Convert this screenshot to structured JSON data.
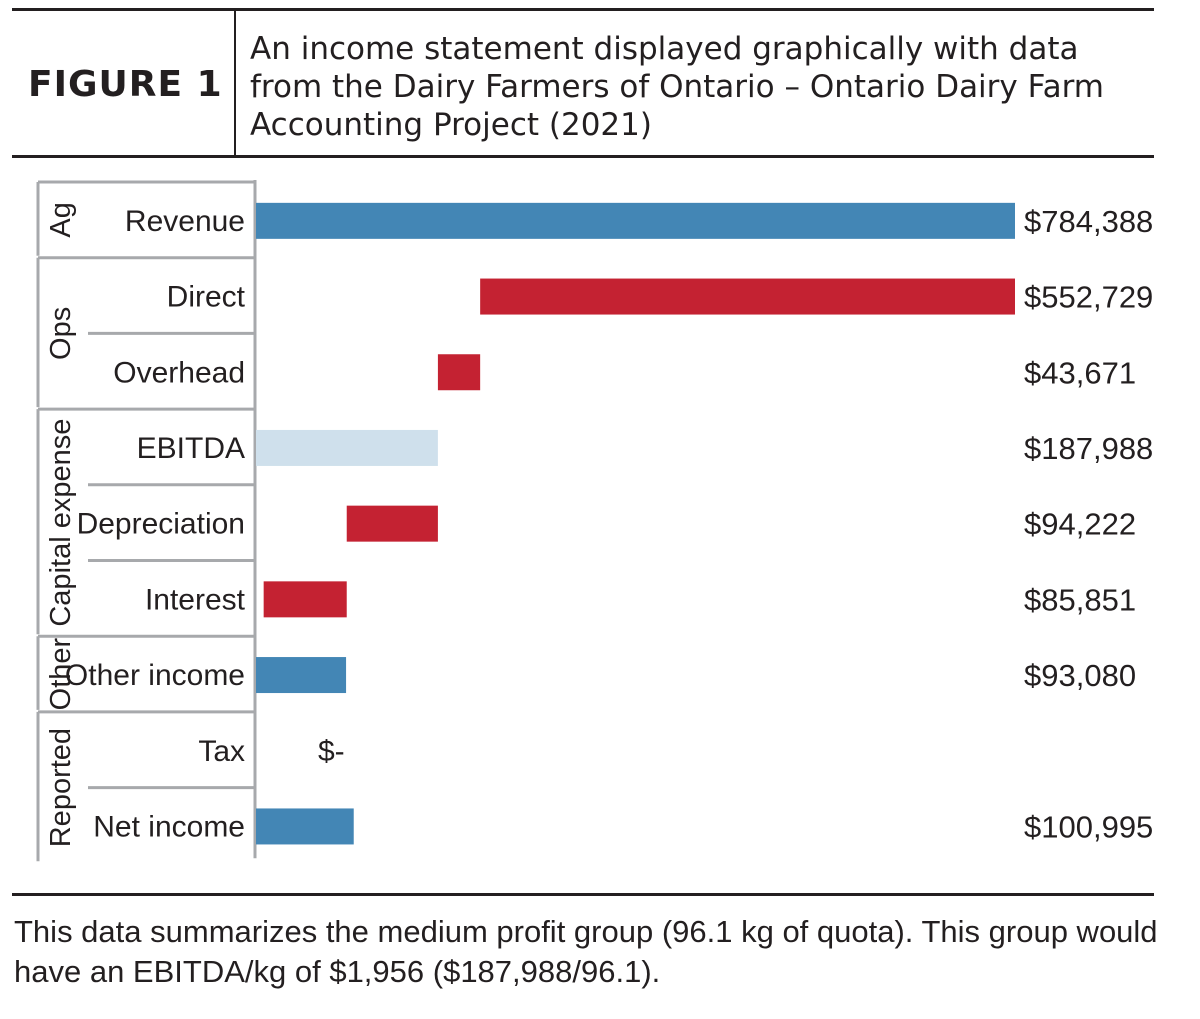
{
  "figure": {
    "label": "FIGURE 1",
    "title": "An income statement displayed graphically with data from the Dairy Farmers of Ontario – Ontario Dairy Farm Accounting Project (2021)",
    "footnote": "This data summarizes the medium profit group (96.1 kg of quota). This group would have an EBITDA/kg of $1,956 ($187,988/96.1)."
  },
  "colors": {
    "income": "#4386b5",
    "expense": "#c42232",
    "subtotal": "#cfe0ec",
    "axis": "#a7a9ac"
  },
  "chart_data": {
    "type": "bar",
    "subtype": "waterfall-horizontal",
    "categories": [
      "Revenue",
      "Direct",
      "Overhead",
      "EBITDA",
      "Depreciation",
      "Interest",
      "Other income",
      "Tax",
      "Net income"
    ],
    "groups": [
      {
        "name": "Ag",
        "categories": [
          "Revenue"
        ]
      },
      {
        "name": "Ops",
        "categories": [
          "Direct",
          "Overhead"
        ]
      },
      {
        "name": "Capital expense",
        "categories": [
          "EBITDA",
          "Depreciation",
          "Interest"
        ]
      },
      {
        "name": "Other",
        "categories": [
          "Other income"
        ]
      },
      {
        "name": "Reported",
        "categories": [
          "Tax",
          "Net income"
        ]
      }
    ],
    "bars": [
      {
        "category": "Revenue",
        "value": 784388,
        "start": 0,
        "end": 784388,
        "kind": "income",
        "label": "$784,388"
      },
      {
        "category": "Direct",
        "value": 552729,
        "start": 231659,
        "end": 784388,
        "kind": "expense",
        "label": "$552,729"
      },
      {
        "category": "Overhead",
        "value": 43671,
        "start": 187988,
        "end": 231659,
        "kind": "expense",
        "label": "$43,671"
      },
      {
        "category": "EBITDA",
        "value": 187988,
        "start": 0,
        "end": 187988,
        "kind": "subtotal",
        "label": "$187,988"
      },
      {
        "category": "Depreciation",
        "value": 94222,
        "start": 93766,
        "end": 187988,
        "kind": "expense",
        "label": "$94,222"
      },
      {
        "category": "Interest",
        "value": 85851,
        "start": 7915,
        "end": 93766,
        "kind": "expense",
        "label": "$85,851"
      },
      {
        "category": "Other income",
        "value": 93080,
        "start": 0,
        "end": 93080,
        "kind": "income",
        "label": "$93,080"
      },
      {
        "category": "Tax",
        "value": 0,
        "start": 0,
        "end": 0,
        "kind": "none",
        "label": "$-"
      },
      {
        "category": "Net income",
        "value": 100995,
        "start": 0,
        "end": 100995,
        "kind": "income",
        "label": "$100,995"
      }
    ],
    "xlim": [
      0,
      784388
    ],
    "grid": false,
    "legend": "none"
  }
}
